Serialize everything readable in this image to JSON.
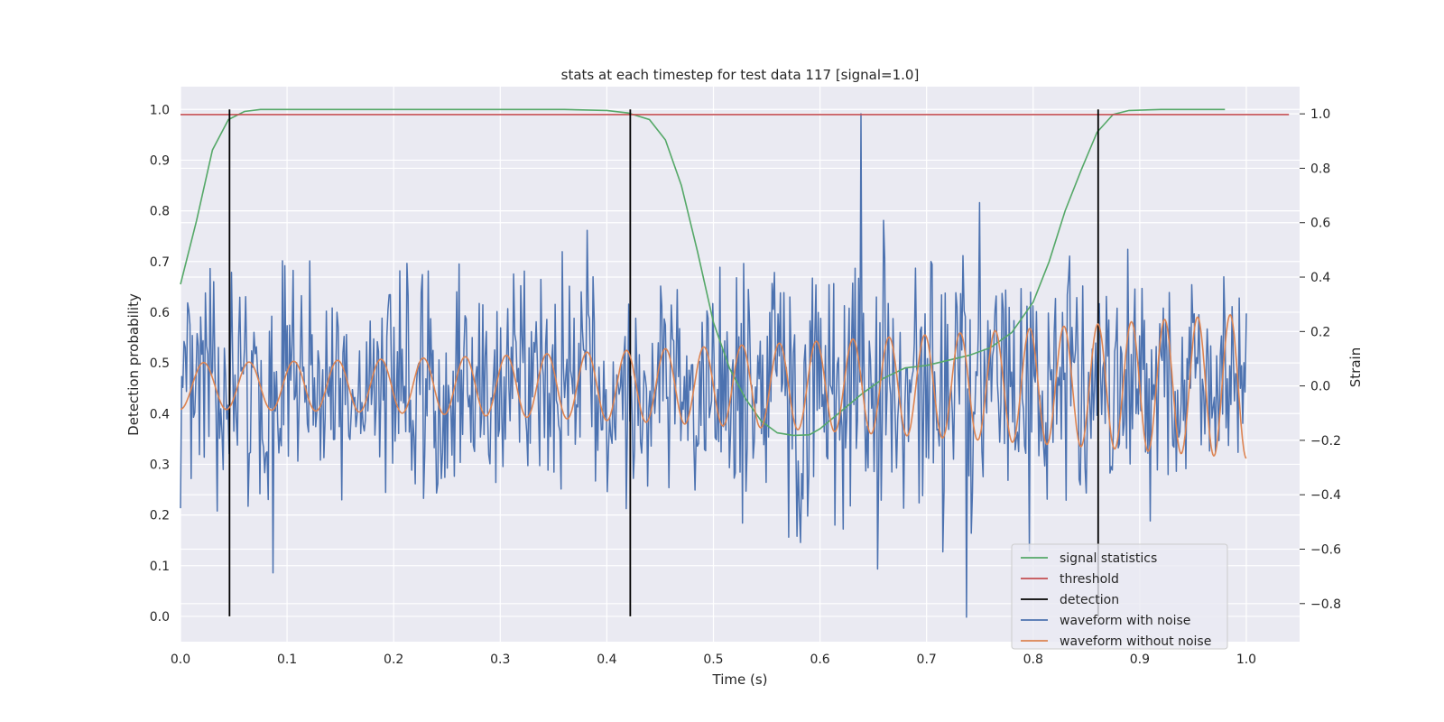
{
  "chart_data": {
    "type": "line",
    "title": "stats at each timestep for test data 117 [signal=1.0]",
    "xlabel": "Time (s)",
    "ylabel": "Detection probability",
    "y2label": "Strain",
    "xlim": [
      0.0,
      1.05
    ],
    "ylim": [
      -0.05,
      1.045
    ],
    "y2lim": [
      -0.94,
      1.1
    ],
    "xticks": [
      "0.0",
      "0.1",
      "0.2",
      "0.3",
      "0.4",
      "0.5",
      "0.6",
      "0.7",
      "0.8",
      "0.9",
      "1.0"
    ],
    "yticks": [
      "0.0",
      "0.1",
      "0.2",
      "0.3",
      "0.4",
      "0.5",
      "0.6",
      "0.7",
      "0.8",
      "0.9",
      "1.0"
    ],
    "y2ticks": [
      "−0.8",
      "−0.6",
      "−0.4",
      "−0.2",
      "0.0",
      "0.2",
      "0.4",
      "0.6",
      "0.8",
      "1.0"
    ],
    "grid": true,
    "legend_placement": "lower-right",
    "colors": {
      "background": "#eaeaf2",
      "grid": "#ffffff",
      "signal_statistics": "#55a868",
      "threshold": "#c44e52",
      "detection": "#000000",
      "waveform_with_noise": "#4c72b0",
      "waveform_without_noise": "#dd8452"
    },
    "series": [
      {
        "name": "signal statistics",
        "axis": "left",
        "x": [
          0.0,
          0.015,
          0.03,
          0.045,
          0.06,
          0.075,
          0.1,
          0.2,
          0.3,
          0.36,
          0.4,
          0.42,
          0.44,
          0.455,
          0.47,
          0.485,
          0.5,
          0.515,
          0.53,
          0.545,
          0.56,
          0.575,
          0.59,
          0.6,
          0.62,
          0.64,
          0.66,
          0.68,
          0.7,
          0.72,
          0.74,
          0.76,
          0.78,
          0.8,
          0.815,
          0.83,
          0.845,
          0.86,
          0.875,
          0.89,
          0.92,
          0.98
        ],
        "values": [
          0.655,
          0.78,
          0.92,
          0.98,
          0.996,
          1.0,
          1.0,
          1.0,
          1.0,
          1.0,
          0.998,
          0.993,
          0.98,
          0.94,
          0.85,
          0.72,
          0.58,
          0.49,
          0.43,
          0.385,
          0.362,
          0.357,
          0.358,
          0.37,
          0.405,
          0.44,
          0.47,
          0.49,
          0.495,
          0.505,
          0.515,
          0.53,
          0.56,
          0.62,
          0.7,
          0.8,
          0.88,
          0.955,
          0.99,
          0.998,
          1.0,
          1.0
        ]
      },
      {
        "name": "threshold",
        "axis": "left",
        "x": [
          0.0,
          1.04
        ],
        "values": [
          0.99,
          0.99
        ]
      },
      {
        "name": "detection",
        "axis": "left",
        "x": [
          0.046,
          0.422,
          0.861
        ],
        "values": [
          1.0,
          1.0,
          1.0
        ]
      },
      {
        "name": "waveform with noise",
        "axis": "right",
        "x_range": [
          0.0,
          1.0
        ],
        "points": 900,
        "std": 0.22,
        "values_peak": [
          0.638,
          1.0
        ],
        "values_min": [
          0.737,
          -0.85
        ]
      },
      {
        "name": "waveform without noise",
        "axis": "right",
        "x_range": [
          0.0,
          1.0
        ],
        "start_amplitude": 0.09,
        "end_amplitude": 0.28,
        "start_frequency_hz": 23,
        "end_frequency_hz": 33,
        "values_range": [
          -0.28,
          0.27
        ]
      }
    ]
  },
  "legend": {
    "items": [
      {
        "label": "signal statistics",
        "color": "#55a868"
      },
      {
        "label": "threshold",
        "color": "#c44e52"
      },
      {
        "label": "detection",
        "color": "#000000"
      },
      {
        "label": "waveform with noise",
        "color": "#4c72b0"
      },
      {
        "label": "waveform without noise",
        "color": "#dd8452"
      }
    ]
  }
}
